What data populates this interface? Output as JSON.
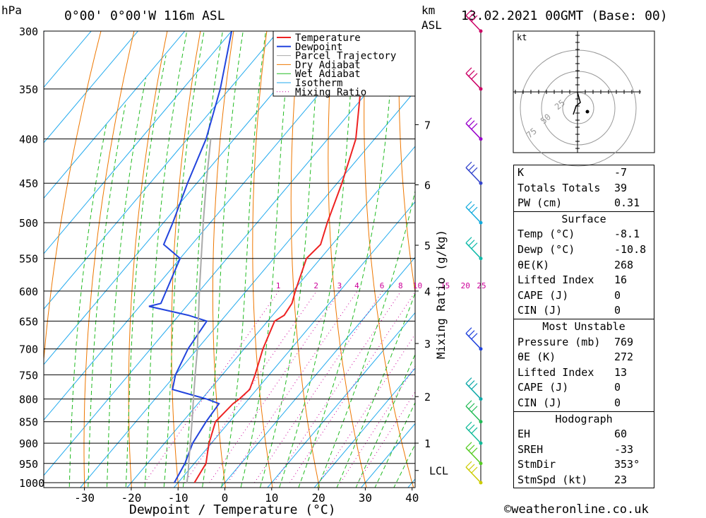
{
  "header": {
    "left_unit": "hPa",
    "location": "0°00' 0°00'W 116m ASL",
    "km_label": "km",
    "asl_label": "ASL",
    "datetime": "13.02.2021 00GMT (Base: 00)"
  },
  "chart_data": {
    "type": "line",
    "title": "",
    "xlabel": "Dewpoint / Temperature (°C)",
    "ylabel": "hPa",
    "xlim": [
      -40,
      40
    ],
    "ylim": [
      1000,
      300
    ],
    "x_ticks": [
      "-30",
      "-20",
      "-10",
      "0",
      "10",
      "20",
      "30",
      "40"
    ],
    "y_ticks": [
      "300",
      "350",
      "400",
      "450",
      "500",
      "550",
      "600",
      "650",
      "700",
      "750",
      "800",
      "850",
      "900",
      "950",
      "1000"
    ],
    "km_ticks": [
      {
        "km": "7",
        "p": 385
      },
      {
        "km": "6",
        "p": 452
      },
      {
        "km": "5",
        "p": 531
      },
      {
        "km": "4",
        "p": 600
      },
      {
        "km": "3",
        "p": 690
      },
      {
        "km": "2",
        "p": 795
      },
      {
        "km": "1",
        "p": 900
      },
      {
        "km": "LCL",
        "p": 968
      }
    ],
    "mixing_ratio_label": "Mixing Ratio (g/kg)",
    "mixing_ratio_values": [
      "1",
      "2",
      "3",
      "4",
      "6",
      "8",
      "10",
      "15",
      "20",
      "25"
    ],
    "legend": [
      "Temperature",
      "Dewpoint",
      "Parcel Trajectory",
      "Dry Adiabat",
      "Wet Adiabat",
      "Isotherm",
      "Mixing Ratio"
    ],
    "legend_position": "top-right",
    "colors": {
      "temperature": "#ee2222",
      "dewpoint": "#2244dd",
      "parcel": "#aaaaaa",
      "dry_adiabat": "#ee7700",
      "wet_adiabat": "#22bb22",
      "isotherm": "#22aaee",
      "mixing_ratio": "#cc0099"
    },
    "series": [
      {
        "name": "Temperature",
        "points": [
          {
            "p": 1000,
            "t": -6.5
          },
          {
            "p": 975,
            "t": -7.0
          },
          {
            "p": 950,
            "t": -7.5
          },
          {
            "p": 925,
            "t": -9.0
          },
          {
            "p": 900,
            "t": -10.5
          },
          {
            "p": 850,
            "t": -13.0
          },
          {
            "p": 810,
            "t": -12.5
          },
          {
            "p": 800,
            "t": -12.0
          },
          {
            "p": 780,
            "t": -11.5
          },
          {
            "p": 750,
            "t": -13.0
          },
          {
            "p": 700,
            "t": -16.0
          },
          {
            "p": 650,
            "t": -18.5
          },
          {
            "p": 640,
            "t": -17.5
          },
          {
            "p": 620,
            "t": -18.0
          },
          {
            "p": 600,
            "t": -19.5
          },
          {
            "p": 550,
            "t": -23.0
          },
          {
            "p": 530,
            "t": -22.5
          },
          {
            "p": 500,
            "t": -25.0
          },
          {
            "p": 450,
            "t": -29.0
          },
          {
            "p": 400,
            "t": -34.0
          },
          {
            "p": 350,
            "t": -42.0
          },
          {
            "p": 300,
            "t": -45.0
          }
        ]
      },
      {
        "name": "Dewpoint",
        "points": [
          {
            "p": 1000,
            "t": -10.8
          },
          {
            "p": 950,
            "t": -12.0
          },
          {
            "p": 900,
            "t": -14.0
          },
          {
            "p": 850,
            "t": -15.0
          },
          {
            "p": 810,
            "t": -15.5
          },
          {
            "p": 800,
            "t": -19.0
          },
          {
            "p": 780,
            "t": -28.0
          },
          {
            "p": 750,
            "t": -30.0
          },
          {
            "p": 700,
            "t": -32.0
          },
          {
            "p": 650,
            "t": -33.0
          },
          {
            "p": 640,
            "t": -38.0
          },
          {
            "p": 625,
            "t": -48.0
          },
          {
            "p": 620,
            "t": -46.0
          },
          {
            "p": 550,
            "t": -50.0
          },
          {
            "p": 530,
            "t": -56.0
          },
          {
            "p": 500,
            "t": -58.0
          },
          {
            "p": 450,
            "t": -62.0
          },
          {
            "p": 400,
            "t": -66.0
          },
          {
            "p": 350,
            "t": -72.0
          },
          {
            "p": 300,
            "t": -80.0
          }
        ]
      },
      {
        "name": "Parcel Trajectory",
        "points": [
          {
            "p": 1000,
            "t": -8.1
          },
          {
            "p": 968,
            "t": -10.0
          },
          {
            "p": 950,
            "t": -11.2
          },
          {
            "p": 900,
            "t": -14.5
          },
          {
            "p": 850,
            "t": -18.0
          },
          {
            "p": 800,
            "t": -21.8
          },
          {
            "p": 750,
            "t": -25.8
          },
          {
            "p": 700,
            "t": -30.0
          },
          {
            "p": 650,
            "t": -34.8
          },
          {
            "p": 600,
            "t": -40.0
          },
          {
            "p": 550,
            "t": -45.5
          },
          {
            "p": 500,
            "t": -51.5
          },
          {
            "p": 450,
            "t": -58.0
          },
          {
            "p": 400,
            "t": -65.0
          }
        ]
      }
    ]
  },
  "hodograph": {
    "unit_label": "kt",
    "ring_labels": [
      "25",
      "50",
      "75"
    ]
  },
  "wind_profile": [
    {
      "p": 300,
      "color": "#cc0066"
    },
    {
      "p": 350,
      "color": "#cc0066"
    },
    {
      "p": 400,
      "color": "#9900cc"
    },
    {
      "p": 450,
      "color": "#3344cc"
    },
    {
      "p": 500,
      "color": "#11aadd"
    },
    {
      "p": 550,
      "color": "#11bbaa"
    },
    {
      "p": 700,
      "color": "#2244dd"
    },
    {
      "p": 800,
      "color": "#11aaaa"
    },
    {
      "p": 850,
      "color": "#22bb55"
    },
    {
      "p": 900,
      "color": "#11bb99"
    },
    {
      "p": 950,
      "color": "#55cc22"
    },
    {
      "p": 1000,
      "color": "#cccc00"
    }
  ],
  "indices": {
    "rows": [
      {
        "label": "K",
        "value": "-7"
      },
      {
        "label": "Totals Totals",
        "value": "39"
      },
      {
        "label": "PW (cm)",
        "value": "0.31"
      }
    ]
  },
  "surface": {
    "title": "Surface",
    "rows": [
      {
        "label": "Temp (°C)",
        "value": "-8.1"
      },
      {
        "label": "Dewp (°C)",
        "value": "-10.8"
      },
      {
        "label": "θE(K)",
        "value": "268"
      },
      {
        "label": "Lifted Index",
        "value": "16"
      },
      {
        "label": "CAPE (J)",
        "value": "0"
      },
      {
        "label": "CIN (J)",
        "value": "0"
      }
    ]
  },
  "most_unstable": {
    "title": "Most Unstable",
    "rows": [
      {
        "label": "Pressure (mb)",
        "value": "769"
      },
      {
        "label": "θE (K)",
        "value": "272"
      },
      {
        "label": "Lifted Index",
        "value": "13"
      },
      {
        "label": "CAPE (J)",
        "value": "0"
      },
      {
        "label": "CIN (J)",
        "value": "0"
      }
    ]
  },
  "hodograph_stats": {
    "title": "Hodograph",
    "rows": [
      {
        "label": "EH",
        "value": "60"
      },
      {
        "label": "SREH",
        "value": "-33"
      },
      {
        "label": "StmDir",
        "value": "353°"
      },
      {
        "label": "StmSpd (kt)",
        "value": "23"
      }
    ]
  },
  "footer": {
    "copyright_icon": "copyright-icon",
    "site": "©weatheronline.co.uk"
  }
}
